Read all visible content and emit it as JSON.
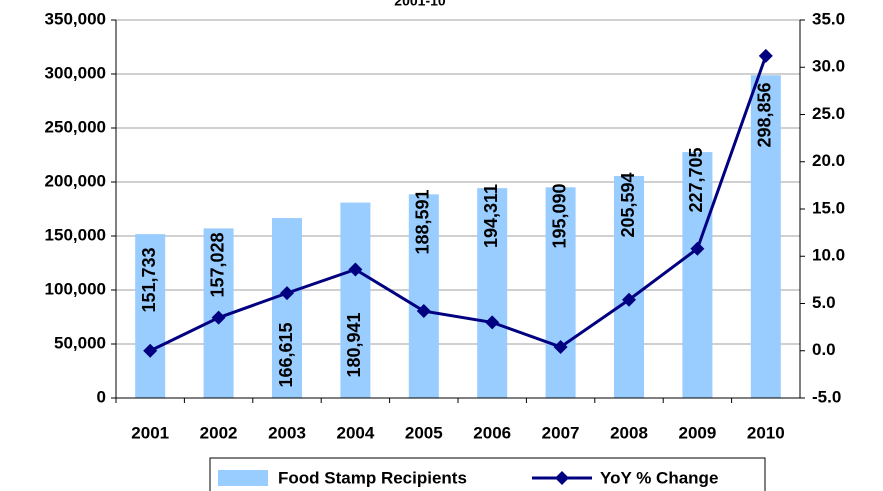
{
  "chart_data": {
    "type": "bar_line",
    "title": "2001-10",
    "categories": [
      "2001",
      "2002",
      "2003",
      "2004",
      "2005",
      "2006",
      "2007",
      "2008",
      "2009",
      "2010"
    ],
    "series": [
      {
        "name": "Food Stamp Recipients",
        "color": "#99ccff",
        "type": "bar",
        "values": [
          151733,
          157028,
          166615,
          180941,
          188591,
          194311,
          195090,
          205594,
          227705,
          298856
        ],
        "value_labels": [
          "151,733",
          "157,028",
          "166,615",
          "180,941",
          "188,591",
          "194,311",
          "195,090",
          "205,594",
          "227,705",
          "298,856"
        ]
      },
      {
        "name": "YoY % Change",
        "color": "#000080",
        "type": "line",
        "axis": "y2",
        "values": [
          0,
          3.5,
          6.1,
          8.6,
          4.2,
          3.0,
          0.4,
          5.4,
          10.8,
          31.2
        ]
      }
    ],
    "ylim": [
      0,
      350000
    ],
    "yticks": [
      0,
      {
        "value": 50000,
        "label": "50,000"
      },
      {
        "value": 100000,
        "label": "100,000"
      },
      {
        "value": 150000,
        "label": "150,000"
      },
      {
        "value": 200000,
        "label": "200,000"
      },
      {
        "value": 250000,
        "label": "250,000"
      },
      {
        "value": 300000,
        "label": "300,000"
      },
      {
        "value": 350000,
        "label": "350,000"
      }
    ],
    "y2lim": [
      -5,
      35
    ],
    "y2ticks": [
      {
        "value": -5,
        "label": "-5.0"
      },
      {
        "value": 0,
        "label": "0.0"
      },
      {
        "value": 5,
        "label": "5.0"
      },
      {
        "value": 10,
        "label": "10.0"
      },
      {
        "value": 15,
        "label": "15.0"
      },
      {
        "value": 20,
        "label": "20.0"
      },
      {
        "value": 25,
        "label": "25.0"
      },
      {
        "value": 30,
        "label": "30.0"
      },
      {
        "value": 35,
        "label": "35.0"
      }
    ],
    "grid": true
  }
}
